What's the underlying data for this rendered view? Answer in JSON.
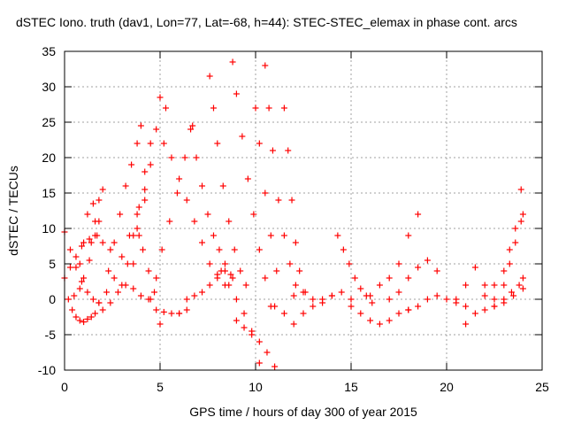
{
  "chart_data": {
    "type": "scatter",
    "title": "dSTEC Iono. truth (dav1, Lon=77, Lat=-68, h=44): STEC-STEC_elemax in phase cont. arcs",
    "xlabel": "GPS time / hours of day 300 of year 2015",
    "ylabel": "dSTEC  / TECUs",
    "xlim": [
      0,
      25
    ],
    "ylim": [
      -10,
      35
    ],
    "xticks": [
      0,
      5,
      10,
      15,
      20,
      25
    ],
    "yticks": [
      -10,
      -5,
      0,
      5,
      10,
      15,
      20,
      25,
      30,
      35
    ],
    "grid": true,
    "marker": "+",
    "color": "#ff0000",
    "series": [
      {
        "x": [
          0.0,
          0.3,
          0.6,
          0.9,
          1.2,
          1.5,
          1.8
        ],
        "y": [
          9.5,
          7.0,
          4.5,
          2.5,
          1.0,
          0.0,
          -0.5
        ]
      },
      {
        "x": [
          0.0,
          0.3,
          0.6,
          0.9,
          1.3,
          1.7,
          2.0,
          2.4
        ],
        "y": [
          3.0,
          4.5,
          6.0,
          7.5,
          8.5,
          9.0,
          8.0,
          7.0
        ]
      },
      {
        "x": [
          0.2,
          0.5,
          0.8,
          1.0,
          1.3,
          1.6
        ],
        "y": [
          0.0,
          0.5,
          1.5,
          3.0,
          5.5,
          9.0
        ]
      },
      {
        "x": [
          0.4,
          0.6,
          0.8,
          1.0,
          1.2,
          1.4
        ],
        "y": [
          -1.5,
          -2.5,
          -3.0,
          -3.2,
          -2.8,
          -2.5
        ]
      },
      {
        "x": [
          0.8,
          1.0,
          1.2,
          1.5,
          1.8
        ],
        "y": [
          5.0,
          8.0,
          12.0,
          13.5,
          11.0
        ]
      },
      {
        "x": [
          1.4,
          1.6,
          1.8,
          2.0
        ],
        "y": [
          8.0,
          11.0,
          14.0,
          15.5
        ]
      },
      {
        "x": [
          1.6,
          2.0,
          2.4,
          2.8,
          3.2,
          3.6,
          4.0,
          4.4
        ],
        "y": [
          -2.0,
          -1.5,
          -0.5,
          1.0,
          2.0,
          1.5,
          0.5,
          0.0
        ]
      },
      {
        "x": [
          1.8,
          2.2,
          2.6,
          3.0,
          3.4,
          3.8,
          4.2
        ],
        "y": [
          -0.5,
          1.0,
          3.0,
          6.0,
          9.0,
          12.0,
          15.5
        ]
      },
      {
        "x": [
          2.3,
          2.6,
          2.9,
          3.2,
          3.5,
          3.8,
          4.0
        ],
        "y": [
          4.0,
          8.0,
          12.0,
          16.0,
          19.0,
          22.0,
          24.5
        ]
      },
      {
        "x": [
          3.0,
          3.3,
          3.6,
          3.9,
          4.2,
          4.5
        ],
        "y": [
          2.0,
          5.0,
          9.0,
          13.0,
          18.0,
          22.0
        ]
      },
      {
        "x": [
          3.6,
          3.9,
          4.2,
          4.5,
          4.8,
          5.0,
          5.3
        ],
        "y": [
          5.0,
          9.0,
          14.0,
          19.0,
          24.0,
          28.5,
          27.0
        ]
      },
      {
        "x": [
          3.8,
          4.1,
          4.4,
          4.7,
          5.0
        ],
        "y": [
          10.0,
          7.0,
          4.0,
          1.0,
          -3.5
        ]
      },
      {
        "x": [
          4.5,
          4.8,
          5.1,
          5.5,
          5.9,
          6.3,
          6.7
        ],
        "y": [
          0.0,
          3.0,
          7.0,
          11.0,
          15.0,
          20.0,
          24.5
        ]
      },
      {
        "x": [
          4.8,
          5.2,
          5.6,
          6.0,
          6.4
        ],
        "y": [
          -1.5,
          -1.8,
          -2.0,
          -2.0,
          -1.5
        ]
      },
      {
        "x": [
          5.2,
          5.6,
          6.0,
          6.4,
          6.8,
          7.2,
          7.6,
          8.0,
          8.4
        ],
        "y": [
          22.0,
          20.0,
          17.0,
          14.0,
          11.0,
          8.0,
          5.0,
          3.0,
          2.0
        ]
      },
      {
        "x": [
          6.0,
          6.4,
          6.8,
          7.2,
          7.6,
          8.0,
          8.4,
          8.8
        ],
        "y": [
          -2.0,
          0.0,
          0.5,
          1.0,
          2.0,
          3.5,
          4.0,
          3.0
        ]
      },
      {
        "x": [
          6.6,
          6.9,
          7.2,
          7.5,
          7.8,
          8.1,
          8.4,
          8.7
        ],
        "y": [
          24.0,
          20.0,
          16.0,
          12.0,
          9.0,
          7.0,
          5.0,
          3.5
        ]
      },
      {
        "x": [
          7.6,
          7.8,
          8.0,
          8.3,
          8.6,
          8.9,
          9.2,
          9.5
        ],
        "y": [
          31.5,
          27.0,
          22.0,
          16.0,
          11.0,
          7.0,
          4.0,
          2.0
        ]
      },
      {
        "x": [
          8.2,
          8.6,
          9.0,
          9.4,
          9.8,
          10.2
        ],
        "y": [
          4.0,
          2.0,
          0.0,
          -2.0,
          -4.5,
          -9.0
        ]
      },
      {
        "x": [
          8.8,
          9.0,
          9.3,
          9.6,
          9.9,
          10.2,
          10.5,
          10.8
        ],
        "y": [
          33.5,
          29.0,
          23.0,
          17.0,
          12.0,
          7.0,
          3.0,
          -1.0
        ]
      },
      {
        "x": [
          9.0,
          9.4,
          9.8,
          10.2,
          10.6,
          11.0
        ],
        "y": [
          -3.0,
          -4.0,
          -5.0,
          -6.0,
          -7.5,
          -9.5
        ]
      },
      {
        "x": [
          10.0,
          10.2,
          10.5,
          10.8,
          11.1
        ],
        "y": [
          27.0,
          22.0,
          15.0,
          9.0,
          4.0
        ]
      },
      {
        "x": [
          10.5,
          10.7,
          10.9,
          11.2,
          11.5,
          11.8,
          12.1
        ],
        "y": [
          33.0,
          27.0,
          21.0,
          14.0,
          9.0,
          5.0,
          2.0
        ]
      },
      {
        "x": [
          11.5,
          11.7,
          11.9,
          12.1,
          12.3,
          12.6
        ],
        "y": [
          27.0,
          21.0,
          14.0,
          8.0,
          4.0,
          1.0
        ]
      },
      {
        "x": [
          11.0,
          11.5,
          12.0,
          12.5,
          13.0,
          13.5,
          14.0
        ],
        "y": [
          -1.0,
          -2.0,
          -3.5,
          -2.0,
          -1.0,
          0.0,
          0.5
        ]
      },
      {
        "x": [
          12.0,
          12.5,
          13.0,
          13.5,
          14.0,
          14.5,
          15.0
        ],
        "y": [
          0.5,
          1.0,
          0.0,
          -0.5,
          0.5,
          1.0,
          0.0
        ]
      },
      {
        "x": [
          14.3,
          14.6,
          14.9,
          15.2,
          15.5,
          15.8,
          16.1
        ],
        "y": [
          9.0,
          7.0,
          5.0,
          3.0,
          1.5,
          0.5,
          -0.5
        ]
      },
      {
        "x": [
          15.0,
          15.5,
          16.0,
          16.5,
          17.0,
          17.5,
          18.0
        ],
        "y": [
          -1.0,
          -2.0,
          -3.0,
          -3.5,
          -3.0,
          -2.0,
          -1.5
        ]
      },
      {
        "x": [
          16.0,
          16.5,
          17.0,
          17.5,
          18.0,
          18.5
        ],
        "y": [
          0.5,
          2.0,
          3.0,
          5.0,
          9.0,
          12.0
        ]
      },
      {
        "x": [
          17.0,
          17.5,
          18.0,
          18.5,
          19.0,
          19.5
        ],
        "y": [
          0.0,
          1.0,
          3.0,
          4.5,
          5.5,
          4.0
        ]
      },
      {
        "x": [
          18.0,
          18.5,
          19.0,
          19.5,
          20.0,
          20.5,
          21.0
        ],
        "y": [
          -1.5,
          -1.0,
          0.0,
          0.5,
          0.0,
          -0.5,
          -1.0
        ]
      },
      {
        "x": [
          20.5,
          21.0,
          21.5,
          22.0,
          22.5
        ],
        "y": [
          0.0,
          2.0,
          4.5,
          2.0,
          0.0
        ]
      },
      {
        "x": [
          21.0,
          21.5,
          22.0,
          22.5,
          23.0,
          23.5,
          24.0
        ],
        "y": [
          -3.5,
          -2.0,
          -1.5,
          -1.0,
          -0.5,
          0.5,
          1.5
        ]
      },
      {
        "x": [
          22.0,
          22.5,
          23.0,
          23.3,
          23.6,
          23.9
        ],
        "y": [
          0.5,
          2.0,
          4.0,
          7.0,
          10.0,
          15.5
        ]
      },
      {
        "x": [
          22.5,
          23.0,
          23.4,
          23.8,
          24.0
        ],
        "y": [
          -1.0,
          0.0,
          1.0,
          2.0,
          3.0
        ]
      },
      {
        "x": [
          23.0,
          23.3,
          23.6,
          23.9,
          24.0
        ],
        "y": [
          2.0,
          5.0,
          8.0,
          11.0,
          12.0
        ]
      }
    ]
  }
}
